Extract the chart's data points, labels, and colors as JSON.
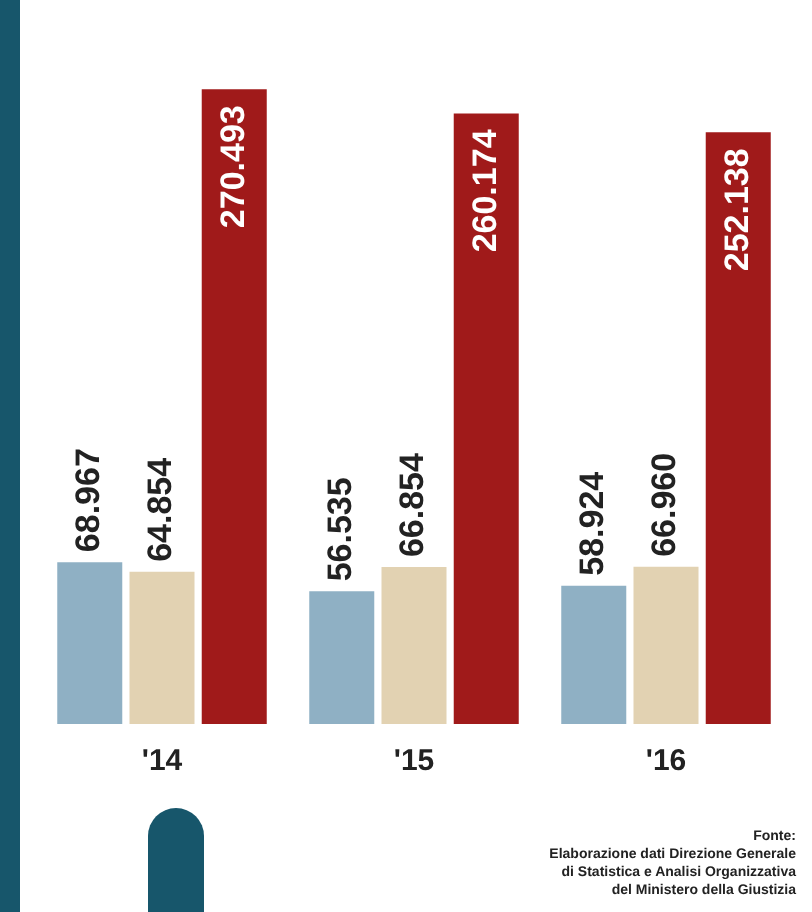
{
  "chart_data": {
    "type": "bar",
    "categories": [
      "'14",
      "'15",
      "'16"
    ],
    "series": [
      {
        "color": "#8fb0c4",
        "values": [
          68967,
          56535,
          58924
        ],
        "value_labels": [
          "68.967",
          "56.535",
          "58.924"
        ]
      },
      {
        "color": "#e2d2b2",
        "values": [
          64854,
          66854,
          66960
        ],
        "value_labels": [
          "64.854",
          "66.854",
          "66.960"
        ]
      },
      {
        "color": "#a01a1a",
        "values": [
          270493,
          260174,
          252138
        ],
        "value_labels": [
          "270.493",
          "260.174",
          "252.138"
        ]
      }
    ],
    "legend": false,
    "grid": false,
    "tick_labels": "x",
    "annotations": [
      "Fonte:\nElaborazione dati Direzione Generale\ndi Statistica e Analisi Organizzativa\ndel Ministero della Giustizia"
    ]
  }
}
